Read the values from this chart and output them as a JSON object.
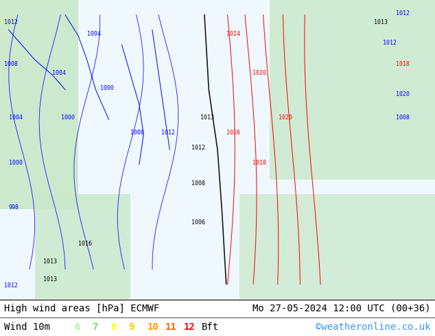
{
  "title_left": "High wind areas [hPa] ECMWF",
  "title_right": "Mo 27-05-2024 12:00 UTC (00+36)",
  "legend_label": "Wind 10m",
  "legend_values": [
    "6",
    "7",
    "8",
    "9",
    "10",
    "11",
    "12"
  ],
  "legend_unit": "Bft",
  "legend_colors": [
    "#99ff99",
    "#66dd66",
    "#ffff00",
    "#ffcc00",
    "#ff9900",
    "#ff6600",
    "#ff0000"
  ],
  "copyright": "©weatheronline.co.uk",
  "bg_color": "#ffffff",
  "map_bg": "#f0f8ff",
  "font_color": "#000000",
  "title_fontsize": 10,
  "legend_fontsize": 10,
  "copyright_color": "#3399ff",
  "fig_width": 6.34,
  "fig_height": 4.9,
  "dpi": 100,
  "map_image_color": "#d4ecd4",
  "bottom_bar_height": 0.11
}
